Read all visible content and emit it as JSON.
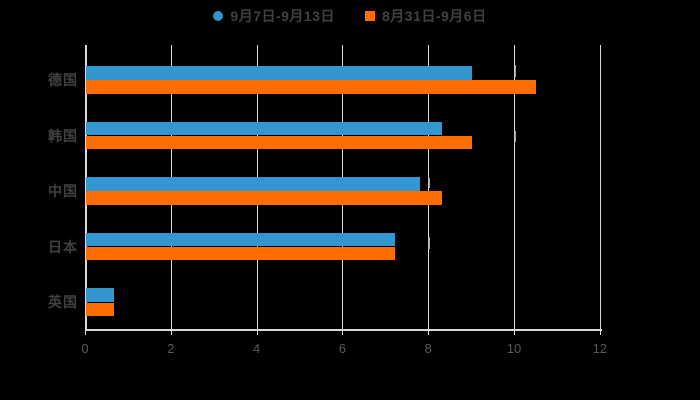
{
  "chart_data": {
    "type": "bar",
    "orientation": "horizontal",
    "title": "",
    "categories": [
      "德国",
      "韩国",
      "中国",
      "日本",
      "英国"
    ],
    "series": [
      {
        "name": "9月7日-9月13日",
        "color": "#3496cf",
        "marker": "circle",
        "values": [
          9.0,
          8.3,
          7.8,
          7.2,
          0.65
        ]
      },
      {
        "name": "8月31日-9月6日",
        "color": "#ff6d01",
        "marker": "square",
        "values": [
          10.5,
          9.0,
          8.3,
          7.2,
          0.65
        ]
      }
    ],
    "xlim": [
      0,
      12
    ],
    "x_ticks": [
      "0",
      "2",
      "4",
      "6",
      "8",
      "10",
      "12"
    ],
    "grid": true,
    "legend_position": "top-center",
    "colors": {
      "background": "#000000",
      "grid": "#d9d9d9",
      "axis": "#d9d9d9",
      "tick_label": "#595959",
      "category_label": "#404040",
      "legend_text": "#404040"
    }
  }
}
